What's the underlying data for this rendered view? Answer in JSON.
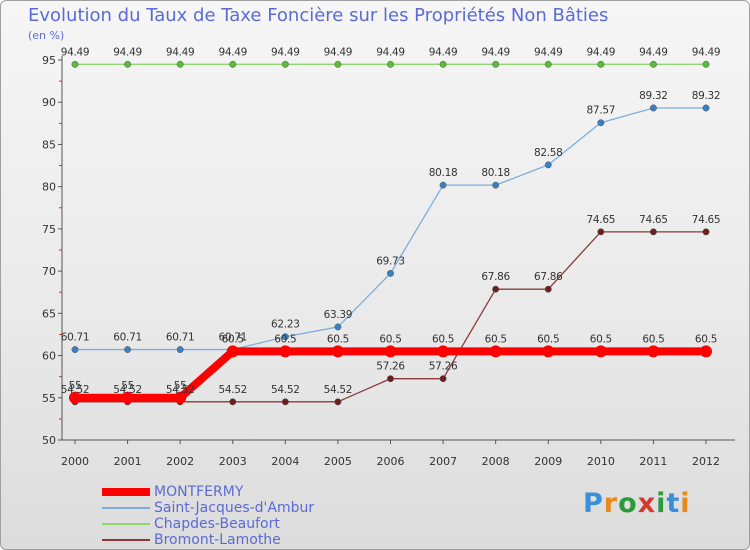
{
  "title": "Evolution du Taux de Taxe Foncière sur les Propriétés Non Bâties",
  "unit_label": "(en %)",
  "logo": {
    "text": "Proxiti",
    "letters": [
      "P",
      "r",
      "o",
      "x",
      "i",
      "t",
      "i"
    ],
    "colors": [
      "#3a8fd8",
      "#e8891b",
      "#2b9b3a",
      "#d6392f",
      "#2b9b3a",
      "#3a8fd8",
      "#e8891b"
    ]
  },
  "chart_data": {
    "type": "line",
    "title": "Evolution du Taux de Taxe Foncière sur les Propriétés Non Bâties",
    "ylabel": "(en %)",
    "xlabel": "",
    "x": [
      "2000",
      "2001",
      "2002",
      "2003",
      "2004",
      "2005",
      "2006",
      "2007",
      "2008",
      "2009",
      "2010",
      "2011",
      "2012"
    ],
    "ylim": [
      50,
      95
    ],
    "yticks": [
      "50",
      "55",
      "60",
      "65",
      "70",
      "75",
      "80",
      "85",
      "90",
      "95"
    ],
    "grid": false,
    "legend_position": "bottom-left",
    "series": [
      {
        "name": "MONTFERMY",
        "color": "#ff0000",
        "width": 8,
        "values": [
          55,
          55,
          55,
          60.5,
          60.5,
          60.5,
          60.5,
          60.5,
          60.5,
          60.5,
          60.5,
          60.5,
          60.5
        ],
        "labels": [
          "55",
          "55",
          "55",
          "60.5",
          "60.5",
          "60.5",
          "60.5",
          "60.5",
          "60.5",
          "60.5",
          "60.5",
          "60.5",
          "60.5"
        ]
      },
      {
        "name": "Saint-Jacques-d'Ambur",
        "color": "#7eaedb",
        "point": "#3a80c4",
        "width": 1.3,
        "values": [
          60.71,
          60.71,
          60.71,
          60.71,
          62.23,
          63.39,
          69.73,
          80.18,
          80.18,
          82.58,
          87.57,
          89.32,
          89.32
        ],
        "labels": [
          "60.71",
          "60.71",
          "60.71",
          "60.71",
          "62.23",
          "63.39",
          "69.73",
          "80.18",
          "80.18",
          "82.58",
          "87.57",
          "89.32",
          "89.32"
        ]
      },
      {
        "name": "Chapdes-Beaufort",
        "color": "#8ed66e",
        "point": "#5dbb3c",
        "width": 1.3,
        "values": [
          94.49,
          94.49,
          94.49,
          94.49,
          94.49,
          94.49,
          94.49,
          94.49,
          94.49,
          94.49,
          94.49,
          94.49,
          94.49
        ],
        "labels": [
          "94.49",
          "94.49",
          "94.49",
          "94.49",
          "94.49",
          "94.49",
          "94.49",
          "94.49",
          "94.49",
          "94.49",
          "94.49",
          "94.49",
          "94.49"
        ]
      },
      {
        "name": "Bromont-Lamothe",
        "color": "#8a3a3a",
        "point": "#6b1f1f",
        "width": 1.3,
        "values": [
          54.52,
          54.52,
          54.52,
          54.52,
          54.52,
          54.52,
          57.26,
          57.26,
          67.86,
          67.86,
          74.65,
          74.65,
          74.65
        ],
        "labels": [
          "54.52",
          "54.52",
          "54.52",
          "54.52",
          "54.52",
          "54.52",
          "57.26",
          "57.26",
          "67.86",
          "67.86",
          "74.65",
          "74.65",
          "74.65"
        ]
      }
    ]
  }
}
